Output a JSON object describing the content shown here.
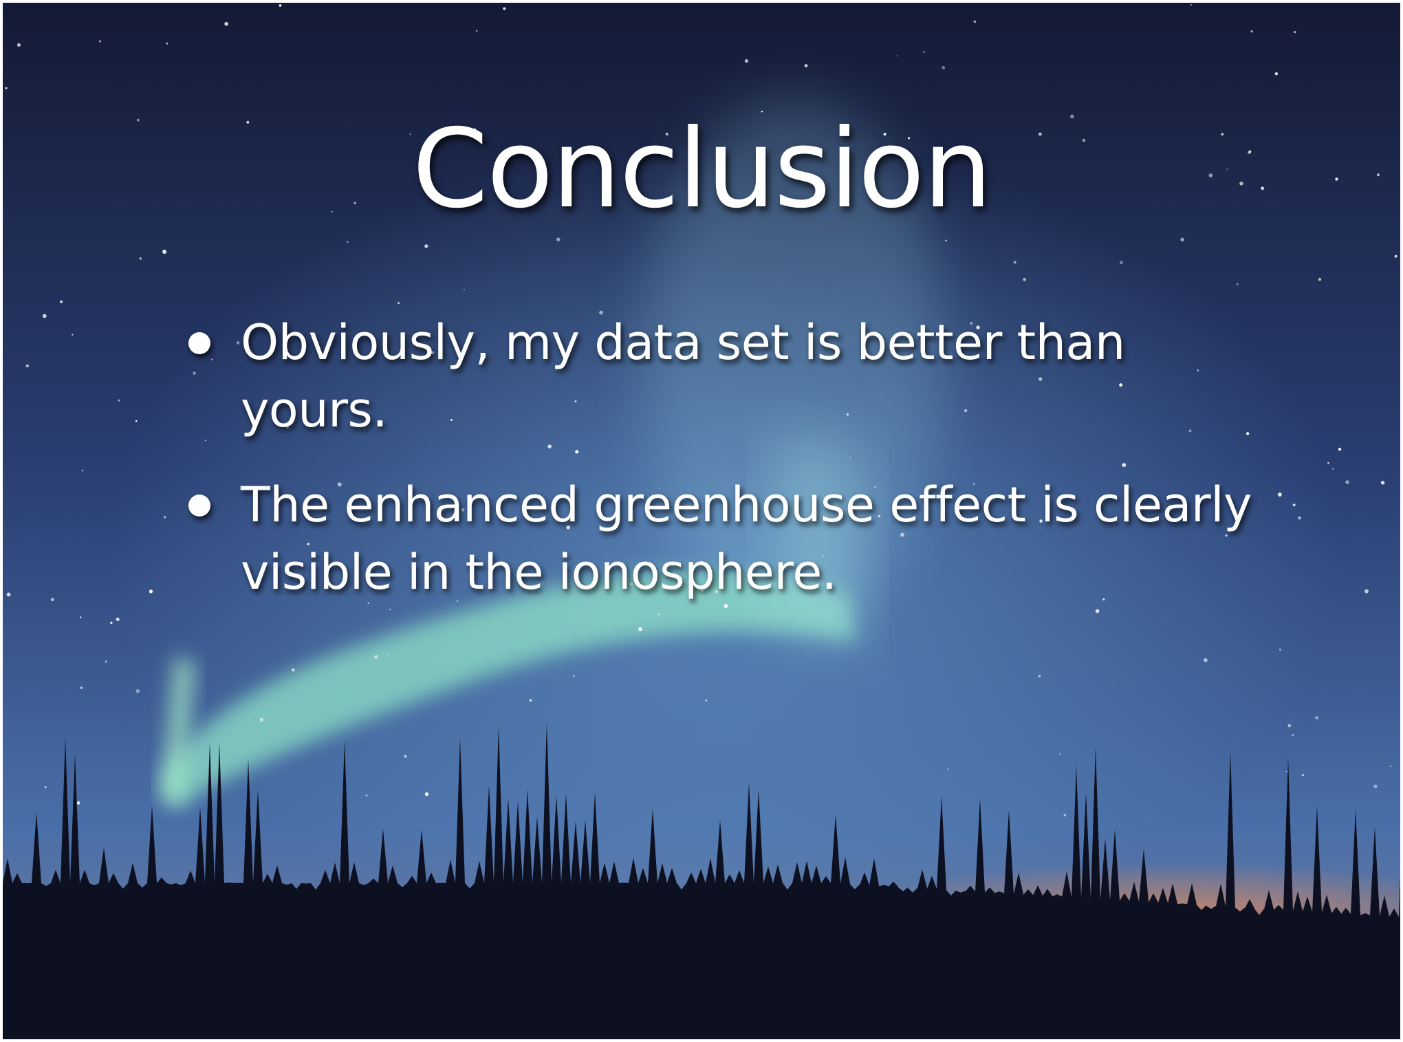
{
  "slide": {
    "title": "Conclusion",
    "bullets": [
      "Obviously, my data set is better than yours.",
      "The enhanced greenhouse effect is clearly visible in the ionosphere."
    ]
  }
}
